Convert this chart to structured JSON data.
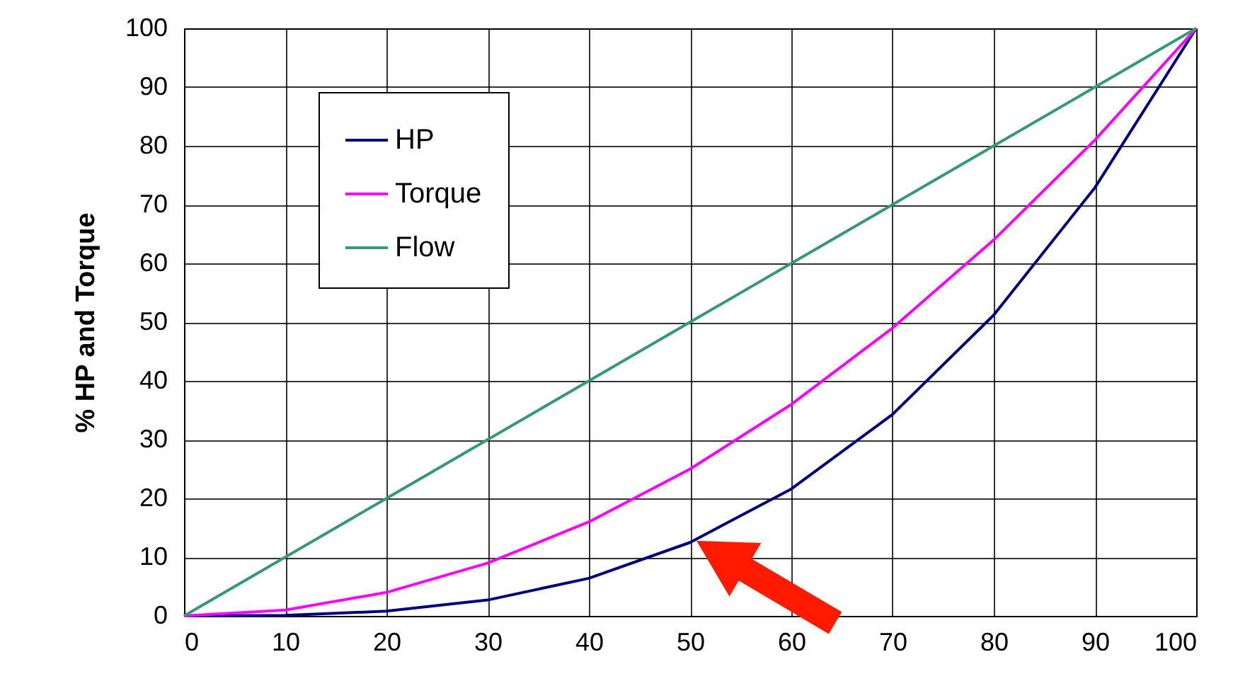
{
  "chart_data": {
    "type": "line",
    "ylabel": "% HP and Torque",
    "x": [
      0,
      10,
      20,
      30,
      40,
      50,
      60,
      70,
      80,
      90,
      100
    ],
    "series": [
      {
        "name": "HP",
        "color": "#000080",
        "values": [
          0,
          0.1,
          0.8,
          2.7,
          6.4,
          12.5,
          21.6,
          34.3,
          51.2,
          72.9,
          100
        ]
      },
      {
        "name": "Torque",
        "color": "#ff00ff",
        "values": [
          0,
          1,
          4,
          9,
          16,
          25,
          36,
          49,
          64,
          81,
          100
        ]
      },
      {
        "name": "Flow",
        "color": "#339977",
        "values": [
          0,
          10,
          20,
          30,
          40,
          50,
          60,
          70,
          80,
          90,
          100
        ]
      }
    ],
    "xlim": [
      0,
      100
    ],
    "xticks": [
      0,
      10,
      20,
      30,
      40,
      50,
      60,
      70,
      80,
      90,
      100
    ],
    "ylim": [
      0,
      100
    ],
    "yticks": [
      0,
      10,
      20,
      30,
      40,
      50,
      60,
      70,
      80,
      90,
      100
    ],
    "grid": true,
    "legend": "top left",
    "marker": "none",
    "line_style": "solid"
  }
}
